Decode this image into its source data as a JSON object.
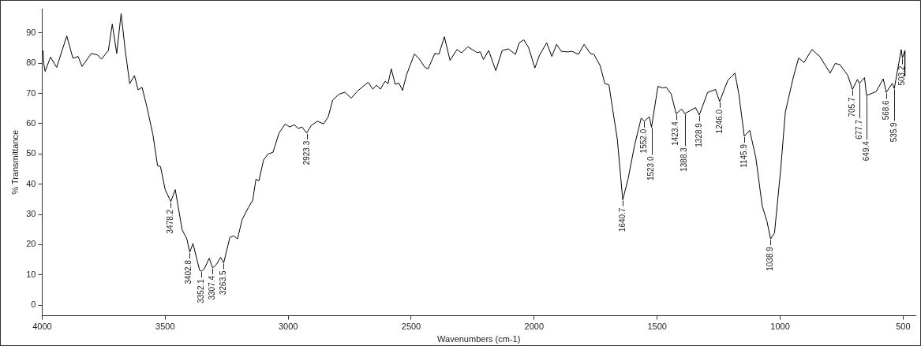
{
  "chart_data": {
    "type": "line",
    "xlabel": "Wavenumbers (cm-1)",
    "ylabel": "% Transmittance",
    "xlim": [
      4000,
      450
    ],
    "ylim": [
      -3.5,
      98
    ],
    "xticks": [
      4000,
      3500,
      3000,
      2500,
      2000,
      1500,
      1000,
      500
    ],
    "yticks": [
      0,
      10,
      20,
      30,
      40,
      50,
      60,
      70,
      80,
      90
    ],
    "grid": false,
    "legend": false,
    "marker": "none",
    "line_style": "solid",
    "series": [
      {
        "color": "#000000",
        "x": [
          3996,
          3994,
          3988,
          3966,
          3941,
          3900,
          3875,
          3854,
          3838,
          3800,
          3775,
          3759,
          3731,
          3715,
          3697,
          3679,
          3662,
          3644,
          3625,
          3610,
          3594,
          3575,
          3550,
          3531,
          3519,
          3500,
          3477,
          3459,
          3431,
          3412,
          3400,
          3387,
          3360,
          3352,
          3341,
          3321,
          3307,
          3291,
          3275,
          3262,
          3237,
          3221,
          3206,
          3187,
          3162,
          3144,
          3131,
          3119,
          3100,
          3081,
          3062,
          3037,
          3012,
          2994,
          2975,
          2959,
          2944,
          2925,
          2906,
          2881,
          2856,
          2837,
          2819,
          2794,
          2769,
          2744,
          2719,
          2675,
          2656,
          2641,
          2625,
          2606,
          2594,
          2581,
          2565,
          2550,
          2535,
          2519,
          2487,
          2469,
          2444,
          2431,
          2404,
          2387,
          2365,
          2342,
          2314,
          2295,
          2270,
          2232,
          2219,
          2206,
          2185,
          2156,
          2130,
          2105,
          2076,
          2061,
          2042,
          2023,
          1997,
          1978,
          1949,
          1928,
          1909,
          1890,
          1865,
          1846,
          1820,
          1797,
          1772,
          1757,
          1732,
          1713,
          1696,
          1681,
          1662,
          1640,
          1618,
          1592,
          1565,
          1552,
          1532,
          1523,
          1497,
          1478,
          1463,
          1443,
          1423,
          1400,
          1388,
          1344,
          1329,
          1295,
          1263,
          1246,
          1213,
          1184,
          1168,
          1146,
          1124,
          1099,
          1073,
          1054,
          1039,
          1023,
          998,
          979,
          947,
          925,
          903,
          871,
          839,
          820,
          797,
          776,
          757,
          725,
          706,
          686,
          678,
          657,
          649,
          610,
          581,
          569,
          544,
          536,
          508,
          503,
          493,
          493
        ],
        "values": [
          84.2,
          80,
          77.3,
          82,
          78.6,
          89,
          81.6,
          82.2,
          78.9,
          83.2,
          82.7,
          81.3,
          84.2,
          92.9,
          83.2,
          96.4,
          84,
          73.2,
          75.9,
          71.2,
          72,
          65.8,
          56.4,
          46.1,
          45.8,
          38.2,
          34.2,
          38.2,
          24.9,
          21.9,
          17.5,
          20.4,
          11.5,
          11.2,
          12,
          15.5,
          12.3,
          13.5,
          15.8,
          14,
          22.4,
          22.9,
          21.9,
          28.3,
          32.2,
          34.7,
          41.6,
          41.1,
          48,
          50,
          50.5,
          56.9,
          59.9,
          58.9,
          59.6,
          58.4,
          58.9,
          56.9,
          59.4,
          60.8,
          59.9,
          62.3,
          67.8,
          69.7,
          70.4,
          68.4,
          70.7,
          73.7,
          71.4,
          72.7,
          71.4,
          74,
          73.2,
          78.1,
          73,
          73.4,
          71,
          76.1,
          83,
          81.6,
          78.6,
          78.1,
          83.2,
          83,
          88.7,
          80.9,
          84.5,
          83.4,
          85.4,
          83.5,
          83.7,
          81.2,
          84.2,
          77.5,
          84.2,
          84.7,
          82.9,
          86.7,
          87.7,
          85.2,
          78.4,
          82.7,
          86.7,
          82.2,
          86.2,
          83.9,
          83.7,
          83.9,
          82.9,
          86.2,
          83.2,
          82.9,
          79.2,
          73.3,
          72.8,
          64.8,
          54.8,
          34.8,
          41.8,
          52.8,
          61.8,
          60.8,
          62.3,
          58.8,
          72.3,
          71.8,
          72,
          69.8,
          63.3,
          64.8,
          63.3,
          65.3,
          62.8,
          70.3,
          71.3,
          67.3,
          74.3,
          76.7,
          69.8,
          55.8,
          57.8,
          48.8,
          32.8,
          27.8,
          21.9,
          23.9,
          44.8,
          63.8,
          75.2,
          81.7,
          80.2,
          84.5,
          82.2,
          79.7,
          76.7,
          79.9,
          79.5,
          75.9,
          71.3,
          74.6,
          73.3,
          75.2,
          69.3,
          70.6,
          74.8,
          70.3,
          73.3,
          71.6,
          84.5,
          81.7,
          84.2,
          75.7
        ]
      }
    ],
    "annotations": [
      {
        "text": "3478.2",
        "x": 3478.2,
        "y": 34.2
      },
      {
        "text": "3402.8",
        "x": 3402.8,
        "y": 17.5
      },
      {
        "text": "3352.1",
        "x": 3352.1,
        "y": 11.2
      },
      {
        "text": "3307.4",
        "x": 3307.4,
        "y": 12.3
      },
      {
        "text": "3263.5",
        "x": 3263.5,
        "y": 14
      },
      {
        "text": "2923.3",
        "x": 2923.3,
        "y": 56.9
      },
      {
        "text": "1640.7",
        "x": 1640.7,
        "y": 34.8
      },
      {
        "text": "1552.0",
        "x": 1552.0,
        "y": 60.8
      },
      {
        "text": "1523.0",
        "x": 1523.0,
        "y": 58.8
      },
      {
        "text": "1423.4",
        "x": 1423.4,
        "y": 63.3
      },
      {
        "text": "1388.3",
        "x": 1388.3,
        "y": 63.3
      },
      {
        "text": "1328.9",
        "x": 1328.9,
        "y": 62.8
      },
      {
        "text": "1246.0",
        "x": 1246.0,
        "y": 67.3
      },
      {
        "text": "1145.9",
        "x": 1145.9,
        "y": 55.8
      },
      {
        "text": "1038.9",
        "x": 1038.9,
        "y": 21.9
      },
      {
        "text": "705.7",
        "x": 705.7,
        "y": 71.3
      },
      {
        "text": "677.7",
        "x": 677.7,
        "y": 73.3
      },
      {
        "text": "649.4",
        "x": 649.4,
        "y": 69.3
      },
      {
        "text": "568.6",
        "x": 568.6,
        "y": 70.3
      },
      {
        "text": "535.9",
        "x": 535.9,
        "y": 71.6
      },
      {
        "text": "503.2",
        "x": 503.2,
        "y": 81.7
      }
    ]
  }
}
